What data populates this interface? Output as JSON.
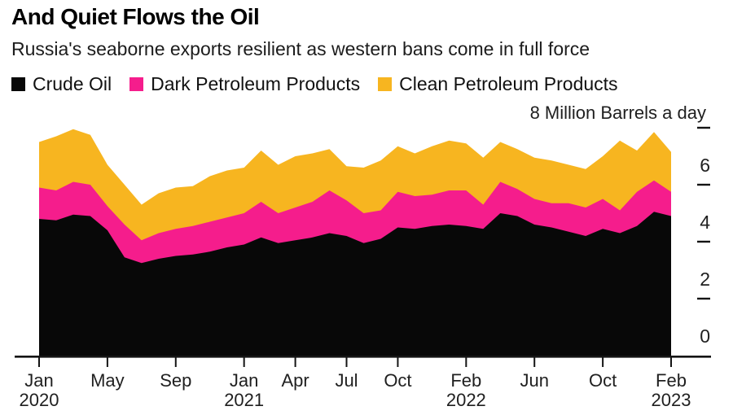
{
  "title": "And Quiet Flows the Oil",
  "subtitle": "Russia's seaborne exports resilient as western bans come in full force",
  "axis_title": "8 Million Barrels a day",
  "legend": [
    {
      "label": "Crude Oil",
      "color": "#080808"
    },
    {
      "label": "Dark Petroleum Products",
      "color": "#f51d8c"
    },
    {
      "label": "Clean Petroleum Products",
      "color": "#f7b520"
    }
  ],
  "chart_data": {
    "type": "area",
    "stacked": true,
    "unit": "Million Barrels a day",
    "ylim": [
      0,
      8
    ],
    "yticks": [
      0,
      2,
      4,
      6,
      8
    ],
    "x": [
      "Jan 2020",
      "Feb 2020",
      "Mar 2020",
      "Apr 2020",
      "May 2020",
      "Jun 2020",
      "Jul 2020",
      "Aug 2020",
      "Sep 2020",
      "Oct 2020",
      "Nov 2020",
      "Dec 2020",
      "Jan 2021",
      "Feb 2021",
      "Mar 2021",
      "Apr 2021",
      "May 2021",
      "Jun 2021",
      "Jul 2021",
      "Aug 2021",
      "Sep 2021",
      "Oct 2021",
      "Nov 2021",
      "Dec 2021",
      "Jan 2022",
      "Feb 2022",
      "Mar 2022",
      "Apr 2022",
      "May 2022",
      "Jun 2022",
      "Jul 2022",
      "Aug 2022",
      "Sep 2022",
      "Oct 2022",
      "Nov 2022",
      "Dec 2022",
      "Jan 2023",
      "Feb 2023"
    ],
    "xticks": [
      {
        "index": 0,
        "month": "Jan",
        "year": "2020"
      },
      {
        "index": 4,
        "month": "May"
      },
      {
        "index": 8,
        "month": "Sep"
      },
      {
        "index": 12,
        "month": "Jan",
        "year": "2021"
      },
      {
        "index": 15,
        "month": "Apr"
      },
      {
        "index": 18,
        "month": "Jul"
      },
      {
        "index": 21,
        "month": "Oct"
      },
      {
        "index": 25,
        "month": "Feb",
        "year": "2022"
      },
      {
        "index": 29,
        "month": "Jun"
      },
      {
        "index": 33,
        "month": "Oct"
      },
      {
        "index": 37,
        "month": "Feb",
        "year": "2023"
      }
    ],
    "series": [
      {
        "name": "Crude Oil",
        "color": "#080808",
        "values": [
          4.8,
          4.75,
          4.95,
          4.9,
          4.4,
          3.45,
          3.25,
          3.4,
          3.5,
          3.55,
          3.65,
          3.8,
          3.9,
          4.15,
          3.95,
          4.05,
          4.15,
          4.3,
          4.2,
          3.95,
          4.1,
          4.5,
          4.45,
          4.55,
          4.6,
          4.55,
          4.45,
          5.0,
          4.9,
          4.6,
          4.5,
          4.35,
          4.2,
          4.45,
          4.3,
          4.55,
          5.05,
          4.9
        ]
      },
      {
        "name": "Dark Petroleum Products",
        "color": "#f51d8c",
        "values": [
          1.1,
          1.05,
          1.15,
          1.1,
          0.85,
          1.15,
          0.8,
          0.9,
          0.95,
          1.0,
          1.05,
          1.05,
          1.1,
          1.25,
          1.05,
          1.15,
          1.25,
          1.5,
          1.25,
          1.05,
          1.0,
          1.25,
          1.15,
          1.1,
          1.2,
          1.25,
          0.85,
          1.1,
          0.95,
          0.9,
          0.85,
          1.0,
          1.0,
          1.05,
          0.8,
          1.2,
          1.1,
          0.85
        ]
      },
      {
        "name": "Clean Petroleum Products",
        "color": "#f7b520",
        "values": [
          1.6,
          1.9,
          1.85,
          1.75,
          1.45,
          1.4,
          1.25,
          1.4,
          1.45,
          1.4,
          1.6,
          1.65,
          1.6,
          1.8,
          1.7,
          1.8,
          1.7,
          1.45,
          1.2,
          1.6,
          1.75,
          1.6,
          1.5,
          1.7,
          1.75,
          1.65,
          1.65,
          1.4,
          1.4,
          1.45,
          1.5,
          1.35,
          1.35,
          1.5,
          2.45,
          1.45,
          1.7,
          1.4
        ]
      }
    ]
  }
}
